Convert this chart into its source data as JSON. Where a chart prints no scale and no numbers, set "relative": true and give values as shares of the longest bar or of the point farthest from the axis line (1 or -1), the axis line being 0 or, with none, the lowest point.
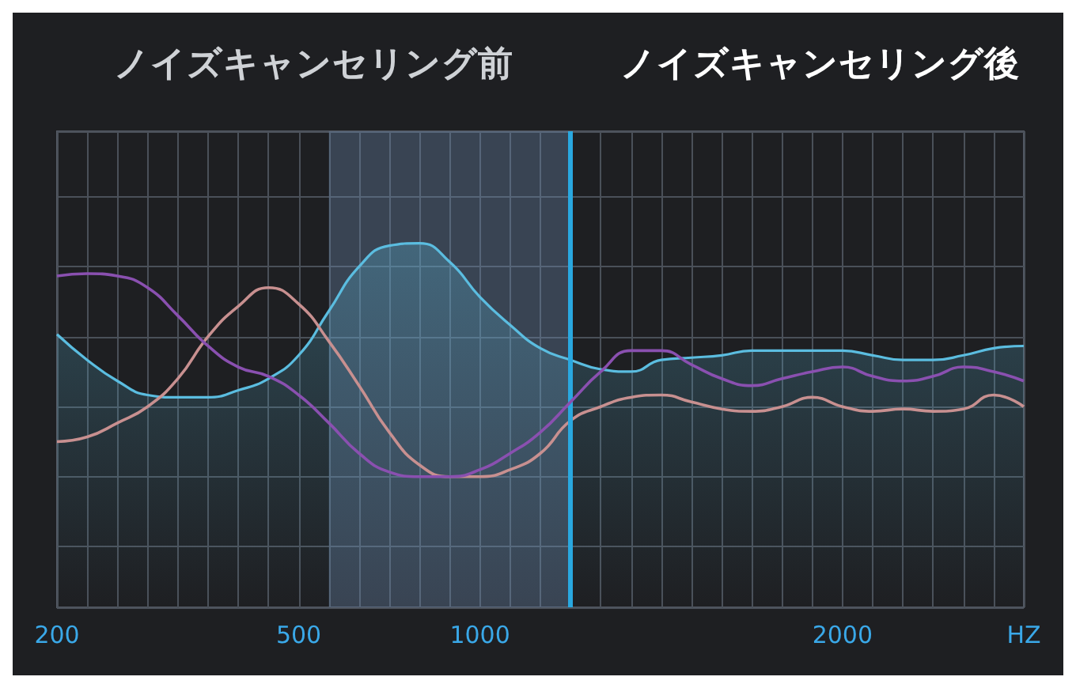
{
  "chart_data": {
    "type": "area",
    "relative": true,
    "grid": true,
    "marker": "none",
    "line_style": "solid",
    "annotations": [
      "ノイズキャンセリング前",
      "ノイズキャンセリング後"
    ],
    "categories": [
      "200",
      null,
      null,
      null,
      null,
      null,
      null,
      null,
      "500",
      null,
      null,
      null,
      null,
      null,
      "1000",
      null,
      null,
      null,
      null,
      null,
      null,
      null,
      null,
      null,
      null,
      null,
      "2000",
      null,
      null,
      null,
      null,
      null,
      "HZ"
    ],
    "series": [
      {
        "color": "#5bbde0",
        "values": [
          0.61,
          0.5,
          0.41,
          0.35,
          0.34,
          0.34,
          0.37,
          0.42,
          0.52,
          0.71,
          0.9,
          0.99,
          1.0,
          0.92,
          0.77,
          0.65,
          0.55,
          0.5,
          0.46,
          0.45,
          0.5,
          0.51,
          0.52,
          0.54,
          0.54,
          0.54,
          0.54,
          0.52,
          0.5,
          0.5,
          0.52,
          0.55,
          0.56
        ]
      },
      {
        "type": "line",
        "color": "#c89090",
        "values": [
          0.15,
          0.17,
          0.23,
          0.3,
          0.42,
          0.6,
          0.73,
          0.81,
          0.74,
          0.58,
          0.39,
          0.19,
          0.05,
          0,
          0,
          0.03,
          0.1,
          0.24,
          0.3,
          0.34,
          0.35,
          0.32,
          0.29,
          0.28,
          0.3,
          0.34,
          0.3,
          0.28,
          0.29,
          0.28,
          0.29,
          0.35,
          0.3
        ]
      },
      {
        "type": "line",
        "color": "#8a50b0",
        "values": [
          0.86,
          0.87,
          0.86,
          0.81,
          0.69,
          0.56,
          0.47,
          0.43,
          0.35,
          0.23,
          0.1,
          0.02,
          0,
          0,
          0.03,
          0.1,
          0.19,
          0.32,
          0.45,
          0.54,
          0.54,
          0.48,
          0.42,
          0.39,
          0.42,
          0.45,
          0.47,
          0.43,
          0.41,
          0.43,
          0.47,
          0.45,
          0.41
        ]
      }
    ]
  }
}
